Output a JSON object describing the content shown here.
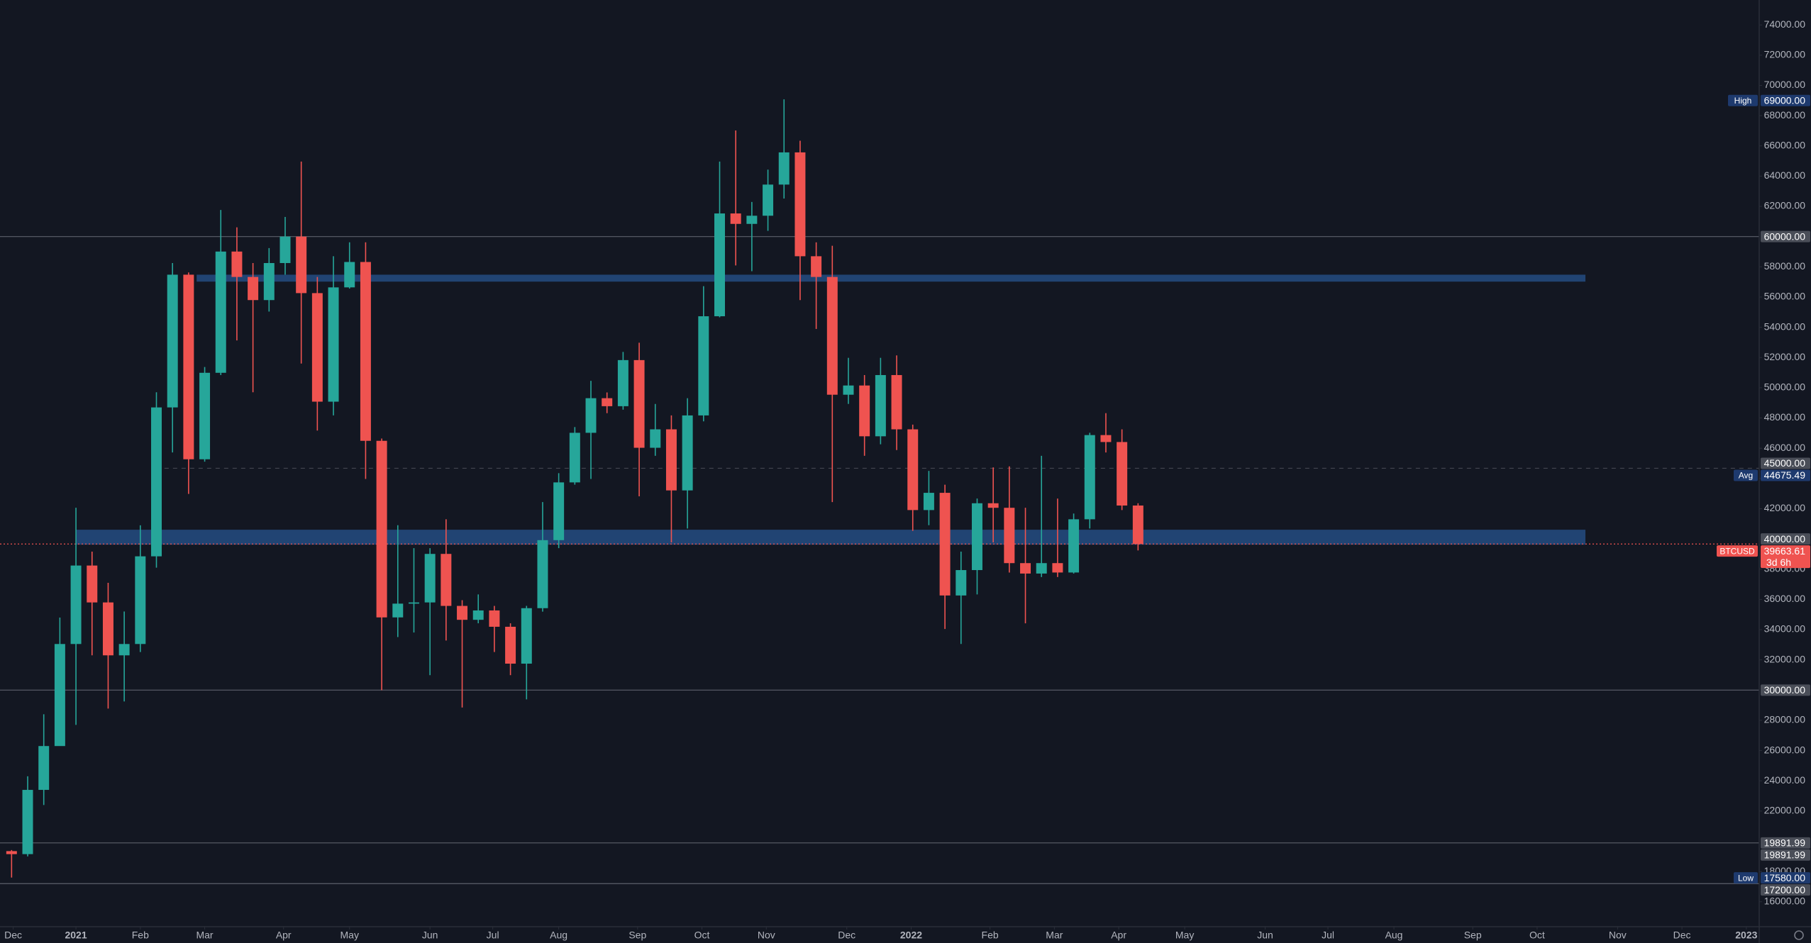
{
  "chart_data": {
    "type": "candlestick",
    "up_color": "#26a69a",
    "down_color": "#ef5350",
    "xlim": [
      -0.72,
      108.6
    ],
    "ylim": [
      14350,
      75650
    ],
    "candles": {
      "open": [
        19350,
        19150,
        23400,
        26300,
        33050,
        38240,
        35800,
        32300,
        33050,
        38850,
        48700,
        57480,
        45270,
        50990,
        59010,
        57330,
        55800,
        58250,
        60000,
        56260,
        49080,
        56640,
        58320,
        46490,
        34810,
        35720,
        35800,
        39010,
        35570,
        34650,
        35270,
        34190,
        31750,
        35420,
        39920,
        43740,
        47020,
        49310,
        48780,
        51830,
        46030,
        47250,
        43210,
        48170,
        54730,
        61530,
        60840,
        61380,
        63440,
        65570,
        58700,
        57330,
        49540,
        50150,
        46790,
        50840,
        47250,
        41910,
        43050,
        36260,
        37940,
        42360,
        42060,
        38400,
        37710,
        38400,
        37780,
        41300,
        46870,
        46410,
        42210
      ],
      "high": [
        19420,
        24300,
        28400,
        34800,
        42060,
        39160,
        37100,
        35200,
        40900,
        49700,
        58250,
        57630,
        51370,
        61760,
        60610,
        58250,
        59240,
        61300,
        64960,
        57330,
        58700,
        59620,
        59620,
        46640,
        40910,
        39390,
        39390,
        41300,
        35950,
        36330,
        35570,
        34420,
        35570,
        42440,
        44350,
        47400,
        50460,
        49690,
        52370,
        52980,
        48930,
        48170,
        49310,
        56720,
        64960,
        67020,
        62290,
        64430,
        69080,
        66340,
        59620,
        59390,
        51980,
        50840,
        51980,
        52140,
        47560,
        44500,
        43590,
        39160,
        42670,
        44730,
        44800,
        42060,
        45500,
        42670,
        41680,
        47020,
        48320,
        47250,
        42360
      ],
      "low": [
        17600,
        19000,
        22400,
        27700,
        27700,
        32300,
        28780,
        29250,
        32520,
        38100,
        45720,
        42980,
        45110,
        50840,
        53130,
        49700,
        55040,
        57480,
        51600,
        47170,
        48170,
        56560,
        43970,
        30000,
        33510,
        33810,
        30990,
        33280,
        28850,
        34420,
        32520,
        30990,
        29390,
        35190,
        39390,
        43590,
        43970,
        48320,
        48550,
        42820,
        45500,
        39770,
        40690,
        47780,
        54660,
        58090,
        57710,
        60380,
        62520,
        55800,
        53890,
        42440,
        48930,
        45500,
        46260,
        45880,
        40530,
        40910,
        34040,
        33050,
        36330,
        39770,
        37780,
        34420,
        37480,
        37480,
        37710,
        40690,
        45720,
        41910,
        39240
      ],
      "close": [
        19150,
        23400,
        26300,
        33050,
        38240,
        35800,
        32300,
        33050,
        38850,
        48700,
        57480,
        45270,
        50990,
        59010,
        57330,
        55800,
        58250,
        60000,
        56260,
        49080,
        56640,
        58320,
        46490,
        34810,
        35720,
        35800,
        39010,
        35570,
        34650,
        35270,
        34190,
        31750,
        35420,
        39920,
        43740,
        47020,
        49310,
        48780,
        51830,
        46030,
        47250,
        43210,
        48170,
        54730,
        61530,
        60840,
        61380,
        63440,
        65570,
        58700,
        57330,
        49540,
        50150,
        46790,
        50840,
        47250,
        41910,
        43050,
        36260,
        37940,
        42360,
        42060,
        38400,
        37710,
        38400,
        37780,
        41300,
        46870,
        46410,
        42210,
        39663.61
      ]
    },
    "xticks": [
      {
        "value": 0.1,
        "label": "Dec"
      },
      {
        "value": 4.0,
        "label": "2021"
      },
      {
        "value": 8.0,
        "label": "Feb"
      },
      {
        "value": 12.0,
        "label": "Mar"
      },
      {
        "value": 16.9,
        "label": "Apr"
      },
      {
        "value": 21.0,
        "label": "May"
      },
      {
        "value": 26.0,
        "label": "Jun"
      },
      {
        "value": 29.9,
        "label": "Jul"
      },
      {
        "value": 34.0,
        "label": "Aug"
      },
      {
        "value": 38.9,
        "label": "Sep"
      },
      {
        "value": 42.9,
        "label": "Oct"
      },
      {
        "value": 46.9,
        "label": "Nov"
      },
      {
        "value": 51.9,
        "label": "Dec"
      },
      {
        "value": 55.9,
        "label": "2022"
      },
      {
        "value": 60.8,
        "label": "Feb"
      },
      {
        "value": 64.8,
        "label": "Mar"
      },
      {
        "value": 68.8,
        "label": "Apr"
      },
      {
        "value": 72.9,
        "label": "May"
      },
      {
        "value": 77.9,
        "label": "Jun"
      },
      {
        "value": 81.8,
        "label": "Jul"
      },
      {
        "value": 85.9,
        "label": "Aug"
      },
      {
        "value": 90.8,
        "label": "Sep"
      },
      {
        "value": 94.8,
        "label": "Oct"
      },
      {
        "value": 99.8,
        "label": "Nov"
      },
      {
        "value": 103.8,
        "label": "Dec"
      },
      {
        "value": 107.8,
        "label": "2023"
      }
    ],
    "yticks": [
      {
        "value": 16000,
        "label": "16000.00"
      },
      {
        "value": 18000,
        "label": "18000.00"
      },
      {
        "value": 22000,
        "label": "22000.00"
      },
      {
        "value": 24000,
        "label": "24000.00"
      },
      {
        "value": 26000,
        "label": "26000.00"
      },
      {
        "value": 28000,
        "label": "28000.00"
      },
      {
        "value": 32000,
        "label": "32000.00"
      },
      {
        "value": 34000,
        "label": "34000.00"
      },
      {
        "value": 36000,
        "label": "36000.00"
      },
      {
        "value": 38000,
        "label": "38000.00"
      },
      {
        "value": 42000,
        "label": "42000.00"
      },
      {
        "value": 44000,
        "label": "44000.00"
      },
      {
        "value": 46000,
        "label": "46000.00"
      },
      {
        "value": 48000,
        "label": "48000.00"
      },
      {
        "value": 50000,
        "label": "50000.00"
      },
      {
        "value": 52000,
        "label": "52000.00"
      },
      {
        "value": 54000,
        "label": "54000.00"
      },
      {
        "value": 56000,
        "label": "56000.00"
      },
      {
        "value": 58000,
        "label": "58000.00"
      },
      {
        "value": 62000,
        "label": "62000.00"
      },
      {
        "value": 64000,
        "label": "64000.00"
      },
      {
        "value": 66000,
        "label": "66000.00"
      },
      {
        "value": 68000,
        "label": "68000.00"
      },
      {
        "value": 70000,
        "label": "70000.00"
      },
      {
        "value": 72000,
        "label": "72000.00"
      },
      {
        "value": 74000,
        "label": "74000.00"
      }
    ],
    "zones": [
      {
        "start": 11.5,
        "end": 97.8,
        "from": 57020,
        "to": 57480,
        "color": "#24497c"
      },
      {
        "start": 4.0,
        "end": 97.8,
        "from": 39620,
        "to": 40610,
        "color": "#24497c"
      }
    ],
    "price_tags": [
      {
        "value": 69000,
        "label": "69000.00",
        "name": "High",
        "color": "#1e3a6e",
        "line": "none"
      },
      {
        "value": 60000,
        "label": "60000.00",
        "color": "#4a4e58",
        "line": "solid"
      },
      {
        "value": 45000,
        "label": "45000.00",
        "color": "#4a4e58",
        "line": "none"
      },
      {
        "value": 44675.49,
        "label": "44675.49",
        "name": "Avg",
        "color": "#1e3a6e",
        "line": "dashed"
      },
      {
        "value": 40000,
        "label": "40000.00",
        "color": "#4a4e58",
        "line": "none"
      },
      {
        "value": 39663.61,
        "label": "39663.61",
        "name": "BTCUSD",
        "note": "3d 6h",
        "color": "#ef5350",
        "line": "dotted"
      },
      {
        "value": 30000,
        "label": "30000.00",
        "color": "#4a4e58",
        "line": "solid"
      },
      {
        "value": 19891.99,
        "label": "19891.99",
        "color": "#4a4e58",
        "line": "solid"
      },
      {
        "value": 19891.99,
        "label": "19891.99",
        "color": "#4a4e58",
        "line": "none"
      },
      {
        "value": 17580,
        "label": "17580.00",
        "name": "Low",
        "color": "#1e3a6e",
        "line": "none"
      },
      {
        "value": 17200,
        "label": "17200.00",
        "color": "#4a4e58",
        "line": "solid"
      }
    ]
  }
}
